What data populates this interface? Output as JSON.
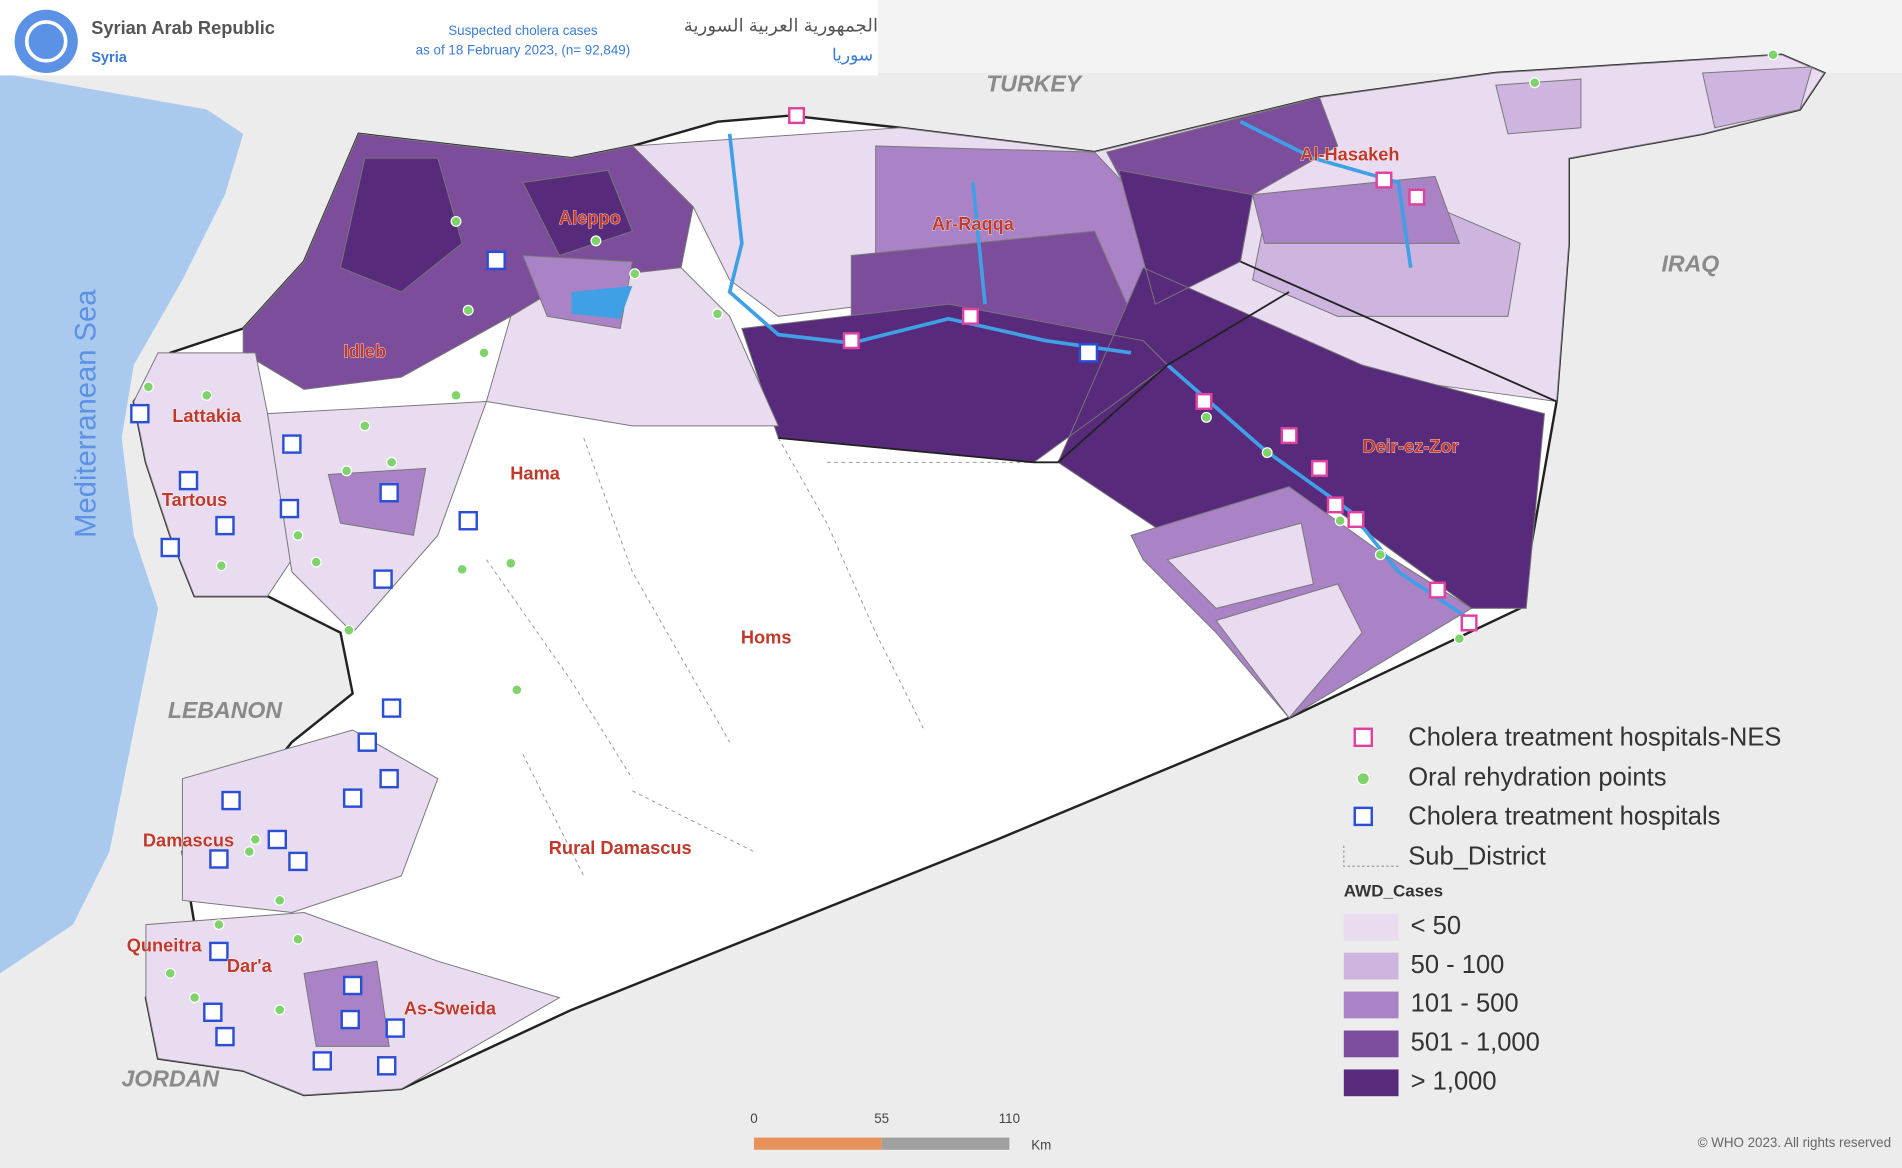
{
  "header": {
    "title": "Syrian Arab Republic",
    "subtitle": "Syria",
    "map_title": "Suspected cholera cases",
    "map_date": "as of 18 February 2023, (n= 92,849)",
    "arabic_title": "الجمهورية العربية السورية",
    "arabic_subtitle": "سوريا"
  },
  "map": {
    "sea": "Mediterranean Sea",
    "countries": [
      "TURKEY",
      "IRAQ",
      "LEBANON",
      "JORDAN"
    ],
    "governorates": [
      "Aleppo",
      "Ar-Raqqa",
      "Al-Hasakeh",
      "Idleb",
      "Lattakia",
      "Tartous",
      "Hama",
      "Homs",
      "Deir-ez-Zor",
      "Damascus",
      "Rural Damascus",
      "Quneitra",
      "Dar'a",
      "As-Sweida"
    ]
  },
  "legend": {
    "symbols": [
      "Cholera treatment hospitals-NES",
      "Oral rehydration points",
      "Cholera treatment hospitals",
      "Sub_District"
    ],
    "title": "AWD_Cases",
    "classes": [
      {
        "label": "< 50",
        "color": "#e9dcf1"
      },
      {
        "label": "50 - 100",
        "color": "#cdb5df"
      },
      {
        "label": "101 - 500",
        "color": "#a983c5"
      },
      {
        "label": "501 - 1,000",
        "color": "#7b4d9b"
      },
      {
        "label": "> 1,000",
        "color": "#582a7c"
      }
    ]
  },
  "scale_bar": {
    "ticks": [
      0,
      55,
      110
    ],
    "unit": "Km"
  },
  "footer": {
    "copyright": "© WHO 2023. All rights reserved"
  }
}
